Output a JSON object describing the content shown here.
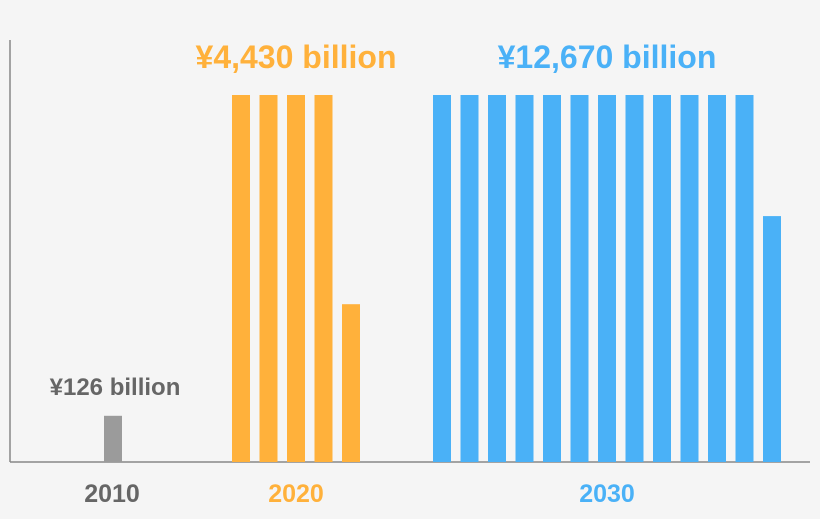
{
  "chart_data": {
    "type": "bar",
    "title": "",
    "xlabel": "",
    "ylabel": "",
    "unit_note": "each full bar represents 1,000 billion yen",
    "groups": [
      {
        "category": "2010",
        "value": 126,
        "value_label": "¥126 billion",
        "color": "#9b9b9b"
      },
      {
        "category": "2020",
        "value": 4430,
        "value_label": "¥4,430 billion",
        "color": "#ffb13b"
      },
      {
        "category": "2030",
        "value": 12670,
        "value_label": "¥12,670 billion",
        "color": "#4ab1f7"
      }
    ],
    "bar_unit": 1000,
    "axis_color": "#888888"
  }
}
